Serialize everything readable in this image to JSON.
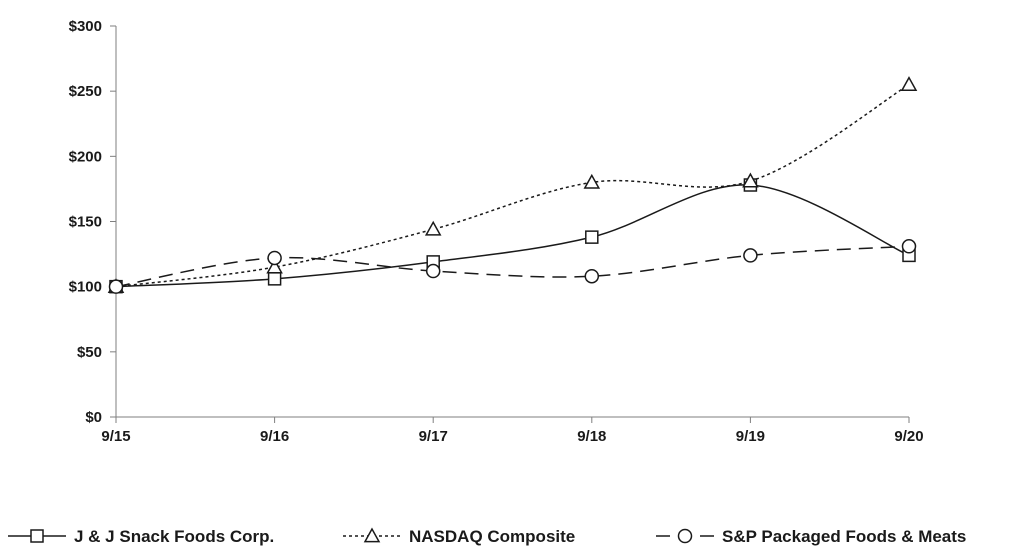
{
  "chart_data": {
    "type": "line",
    "title": "",
    "xlabel": "",
    "ylabel": "",
    "categories": [
      "9/15",
      "9/16",
      "9/17",
      "9/18",
      "9/19",
      "9/20"
    ],
    "ylim": [
      0,
      300
    ],
    "yticks": [
      {
        "value": 0,
        "label": "$0"
      },
      {
        "value": 50,
        "label": "$50"
      },
      {
        "value": 100,
        "label": "$100"
      },
      {
        "value": 150,
        "label": "$150"
      },
      {
        "value": 200,
        "label": "$200"
      },
      {
        "value": 250,
        "label": "$250"
      },
      {
        "value": 300,
        "label": "$300"
      }
    ],
    "grid": false,
    "legend_position": "bottom",
    "series": [
      {
        "name": "J & J Snack Foods Corp.",
        "marker": "square",
        "dash": "solid",
        "color": "#1a1a1a",
        "values": [
          100,
          106,
          119,
          138,
          178,
          124
        ]
      },
      {
        "name": "NASDAQ Composite",
        "marker": "triangle",
        "dash": "dotted",
        "color": "#1a1a1a",
        "values": [
          100,
          115,
          144,
          180,
          181,
          255
        ]
      },
      {
        "name": "S&P Packaged Foods & Meats",
        "marker": "circle",
        "dash": "dashed",
        "color": "#1a1a1a",
        "values": [
          100,
          122,
          112,
          108,
          124,
          131
        ]
      }
    ]
  }
}
